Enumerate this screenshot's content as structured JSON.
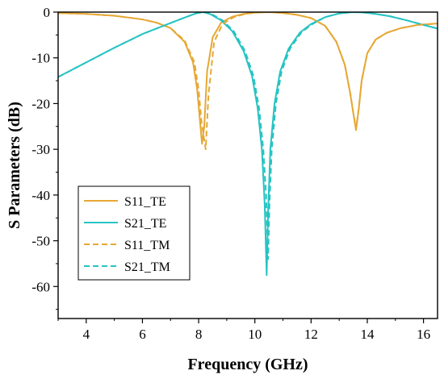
{
  "chart_data": {
    "type": "line",
    "xlabel": "Frequency (GHz)",
    "ylabel": "S Parameters (dB)",
    "xlim": [
      3,
      16.5
    ],
    "ylim": [
      -67,
      0
    ],
    "xticks": [
      4,
      6,
      8,
      10,
      12,
      14,
      16
    ],
    "yticks": [
      0,
      -10,
      -20,
      -30,
      -40,
      -50,
      -60
    ],
    "grid": false,
    "legend_position": "bottom-left",
    "series": [
      {
        "name": "S11_TE",
        "color": "#E6A835",
        "dash": "solid",
        "x": [
          3,
          4,
          5,
          6,
          6.5,
          7,
          7.5,
          7.8,
          7.95,
          8.05,
          8.12,
          8.2,
          8.3,
          8.5,
          8.8,
          9.2,
          9.6,
          10.0,
          10.5,
          11.0,
          11.5,
          12.0,
          12.5,
          12.9,
          13.2,
          13.4,
          13.5,
          13.6,
          13.7,
          13.8,
          14.0,
          14.3,
          14.7,
          15.2,
          15.8,
          16.5
        ],
        "y": [
          -0.2,
          -0.4,
          -0.8,
          -1.6,
          -2.3,
          -3.5,
          -6.5,
          -11,
          -17,
          -24,
          -28.8,
          -25,
          -13,
          -5.5,
          -2.3,
          -1.0,
          -0.4,
          -0.1,
          0,
          -0.2,
          -0.6,
          -1.3,
          -3.0,
          -6.5,
          -11.5,
          -18,
          -22,
          -25.8,
          -21,
          -15,
          -9,
          -6,
          -4.5,
          -3.5,
          -2.8,
          -2.5
        ]
      },
      {
        "name": "S21_TE",
        "color": "#27C3C3",
        "dash": "solid",
        "x": [
          3,
          4,
          5,
          6,
          7,
          7.5,
          7.9,
          8.15,
          8.4,
          8.8,
          9.2,
          9.6,
          9.9,
          10.1,
          10.25,
          10.35,
          10.42,
          10.47,
          10.55,
          10.7,
          10.9,
          11.2,
          11.6,
          12.0,
          12.5,
          13.0,
          13.4,
          13.6,
          13.9,
          14.3,
          14.8,
          15.4,
          16.0,
          16.5
        ],
        "y": [
          -14.2,
          -11.0,
          -7.8,
          -4.8,
          -2.4,
          -1.2,
          -0.3,
          0,
          -0.4,
          -1.8,
          -4.2,
          -8.5,
          -14,
          -21,
          -30,
          -42,
          -57.5,
          -44,
          -30,
          -20,
          -13,
          -8,
          -4.5,
          -2.6,
          -1.1,
          -0.3,
          -0.05,
          0,
          -0.1,
          -0.4,
          -0.9,
          -1.8,
          -2.8,
          -3.6
        ]
      },
      {
        "name": "S11_TM",
        "color": "#E6A835",
        "dash": "dashed",
        "x": [
          3,
          4,
          5,
          6,
          6.5,
          7,
          7.5,
          7.85,
          8.0,
          8.1,
          8.2,
          8.25,
          8.35,
          8.55,
          8.85,
          9.25,
          9.65,
          10.05,
          10.5,
          11.0,
          11.5,
          12.0,
          12.5,
          12.9,
          13.2,
          13.4,
          13.5,
          13.6,
          13.7,
          13.8,
          14.0,
          14.3,
          14.7,
          15.2,
          15.8,
          16.5
        ],
        "y": [
          -0.2,
          -0.4,
          -0.8,
          -1.6,
          -2.3,
          -3.5,
          -6.2,
          -11,
          -17,
          -24,
          -28,
          -30,
          -18,
          -6.5,
          -2.6,
          -1.1,
          -0.4,
          -0.1,
          0,
          -0.2,
          -0.6,
          -1.3,
          -3.0,
          -6.5,
          -11.5,
          -18,
          -22,
          -25.5,
          -21,
          -15,
          -9,
          -6,
          -4.5,
          -3.5,
          -2.8,
          -2.5
        ]
      },
      {
        "name": "S21_TM",
        "color": "#27C3C3",
        "dash": "dashed",
        "x": [
          3,
          4,
          5,
          6,
          7,
          7.5,
          7.9,
          8.2,
          8.45,
          8.85,
          9.25,
          9.65,
          9.95,
          10.15,
          10.3,
          10.4,
          10.47,
          10.52,
          10.6,
          10.75,
          10.95,
          11.25,
          11.65,
          12.0,
          12.5,
          13.0,
          13.4,
          13.6,
          13.9,
          14.3,
          14.8,
          15.4,
          16.0,
          16.5
        ],
        "y": [
          -14.2,
          -11.0,
          -7.8,
          -4.8,
          -2.4,
          -1.2,
          -0.3,
          0,
          -0.4,
          -1.8,
          -4.2,
          -8.5,
          -14,
          -21,
          -30,
          -40,
          -54,
          -42,
          -30,
          -20,
          -13,
          -8,
          -4.5,
          -2.8,
          -1.1,
          -0.3,
          -0.05,
          0,
          -0.1,
          -0.4,
          -0.9,
          -1.8,
          -2.8,
          -3.6
        ]
      }
    ]
  }
}
